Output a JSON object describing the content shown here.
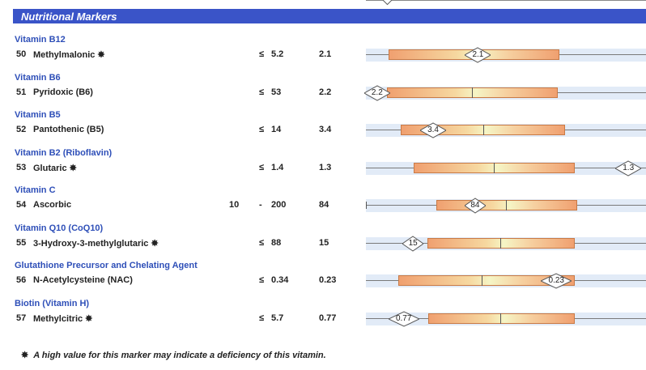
{
  "header": {
    "title": "Nutritional Markers"
  },
  "footnote": {
    "symbol": "✸",
    "text": "A high value for this marker may indicate a deficiency of this vitamin."
  },
  "markers": [
    {
      "category": "Vitamin B12",
      "number": "50",
      "name": "Methylmalonic",
      "flag": "✸",
      "low": "",
      "op": "≤",
      "high": "5.2",
      "value": "2.1",
      "box_start": 0.08,
      "box_end": 0.69,
      "median": null,
      "marker_pos": 0.4
    },
    {
      "category": "Vitamin B6",
      "number": "51",
      "name": "Pyridoxic (B6)",
      "flag": "",
      "low": "",
      "op": "≤",
      "high": "53",
      "value": "2.2",
      "box_start": 0.075,
      "box_end": 0.685,
      "median": 0.38,
      "marker_pos": 0.04
    },
    {
      "category": "Vitamin B5",
      "number": "52",
      "name": "Pantothenic (B5)",
      "flag": "",
      "low": "",
      "op": "≤",
      "high": "14",
      "value": "3.4",
      "box_start": 0.125,
      "box_end": 0.71,
      "median": 0.42,
      "marker_pos": 0.24
    },
    {
      "category": "Vitamin B2 (Riboflavin)",
      "number": "53",
      "name": "Glutaric",
      "flag": "✸",
      "low": "",
      "op": "≤",
      "high": "1.4",
      "value": "1.3",
      "box_start": 0.17,
      "box_end": 0.745,
      "median": 0.458,
      "marker_pos": 0.937
    },
    {
      "category": "Vitamin C",
      "number": "54",
      "name": "Ascorbic",
      "flag": "",
      "low": "10",
      "op": "-",
      "high": "200",
      "value": "84",
      "box_start": 0.25,
      "box_end": 0.755,
      "median": 0.5,
      "marker_pos": 0.39,
      "left_tick": true
    },
    {
      "category": "Vitamin Q10 (CoQ10)",
      "number": "55",
      "name": "3-Hydroxy-3-methylglutaric",
      "flag": "✸",
      "low": "",
      "op": "≤",
      "high": "88",
      "value": "15",
      "box_start": 0.22,
      "box_end": 0.745,
      "median": 0.48,
      "marker_pos": 0.168
    },
    {
      "category": "Glutathione Precursor and Chelating Agent",
      "number": "56",
      "name": "N-Acetylcysteine (NAC)",
      "flag": "",
      "low": "",
      "op": "≤",
      "high": "0.34",
      "value": "0.23",
      "box_start": 0.115,
      "box_end": 0.745,
      "median": 0.412,
      "marker_pos": 0.68
    },
    {
      "category": "Biotin (Vitamin H)",
      "number": "57",
      "name": "Methylcitric",
      "flag": "✸",
      "low": "",
      "op": "≤",
      "high": "5.7",
      "value": "0.77",
      "box_start": 0.222,
      "box_end": 0.745,
      "median": 0.48,
      "marker_pos": 0.135
    }
  ]
}
